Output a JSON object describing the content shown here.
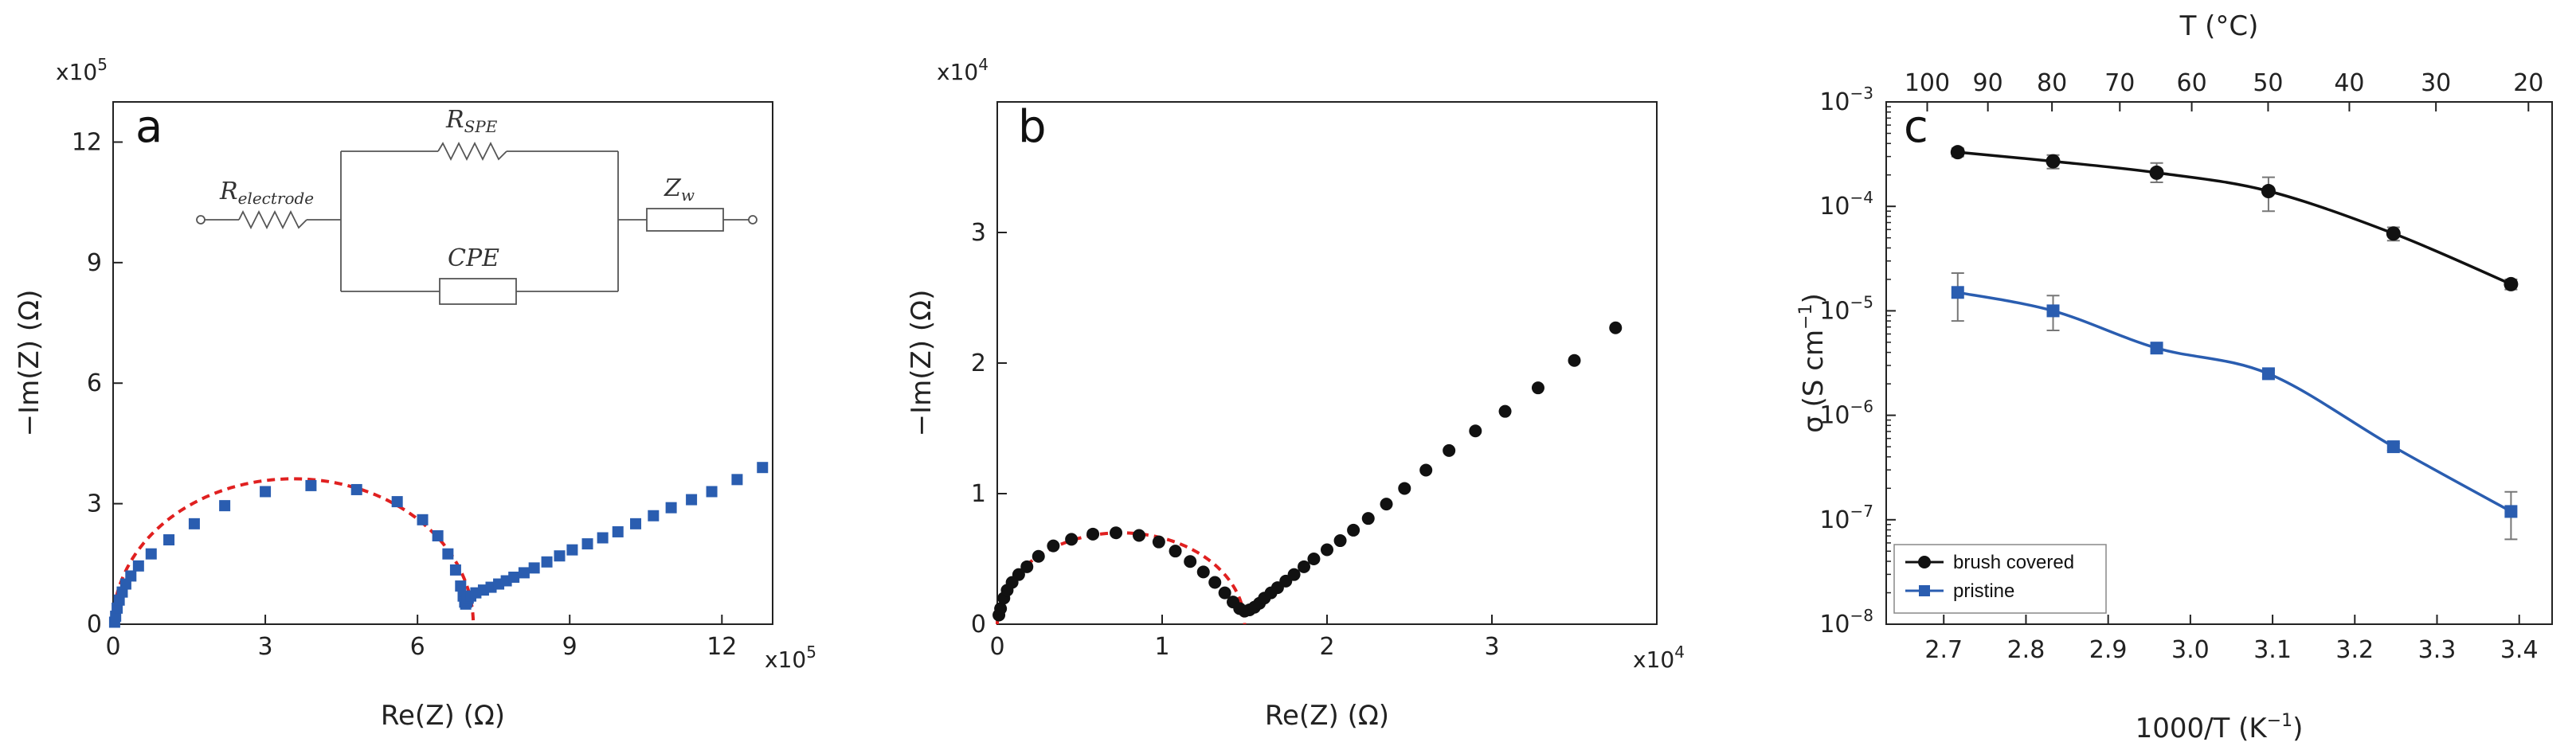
{
  "colors": {
    "blue": "#2a5db0",
    "black": "#111111",
    "fit": "#e02020",
    "axis": "#222222"
  },
  "chart_data": [
    {
      "panel": "a",
      "type": "scatter",
      "xlabel": "Re(Z) (Ω)",
      "ylabel": "−Im(Z) (Ω)",
      "x_multiplier": "x10",
      "x_multiplier_exp": "5",
      "y_multiplier": "x10",
      "y_multiplier_exp": "5",
      "xlim": [
        0,
        13
      ],
      "ylim": [
        0,
        13
      ],
      "xticks": [
        0,
        3,
        6,
        9,
        12
      ],
      "yticks": [
        0,
        3,
        6,
        9,
        12
      ],
      "circuit": {
        "r_electrode": "R",
        "r_electrode_sub": "electrode",
        "r_spe": "R",
        "r_spe_sub": "SPE",
        "cpe": "CPE",
        "zw": "Z",
        "zw_sub": "w"
      },
      "series": [
        {
          "name": "data",
          "marker": "square",
          "color": "#2a5db0",
          "x": [
            0.03,
            0.05,
            0.08,
            0.12,
            0.18,
            0.25,
            0.35,
            0.5,
            0.75,
            1.1,
            1.6,
            2.2,
            3.0,
            3.9,
            4.8,
            5.6,
            6.1,
            6.4,
            6.6,
            6.75,
            6.85,
            6.9,
            6.93,
            6.95,
            6.97,
            6.98,
            7.0,
            7.05,
            7.15,
            7.3,
            7.45,
            7.6,
            7.75,
            7.9,
            8.1,
            8.3,
            8.55,
            8.8,
            9.05,
            9.35,
            9.65,
            9.95,
            10.3,
            10.65,
            11.0,
            11.4,
            11.8,
            12.3,
            12.8
          ],
          "y": [
            0.05,
            0.2,
            0.4,
            0.6,
            0.8,
            1.0,
            1.2,
            1.45,
            1.75,
            2.1,
            2.5,
            2.95,
            3.3,
            3.45,
            3.35,
            3.05,
            2.6,
            2.2,
            1.75,
            1.35,
            0.95,
            0.7,
            0.55,
            0.5,
            0.55,
            0.6,
            0.65,
            0.7,
            0.78,
            0.85,
            0.92,
            1.0,
            1.08,
            1.17,
            1.28,
            1.4,
            1.55,
            1.7,
            1.85,
            2.0,
            2.15,
            2.3,
            2.5,
            2.7,
            2.9,
            3.1,
            3.3,
            3.6,
            3.9
          ]
        }
      ],
      "fit": {
        "type": "semicircle",
        "x_start": 0.0,
        "x_end": 7.1,
        "center": 3.55,
        "radius": 3.55,
        "peak": 3.62
      }
    },
    {
      "panel": "b",
      "type": "scatter",
      "xlabel": "Re(Z) (Ω)",
      "ylabel": "−Im(Z) (Ω)",
      "x_multiplier": "x10",
      "x_multiplier_exp": "4",
      "y_multiplier": "x10",
      "y_multiplier_exp": "4",
      "xlim": [
        0,
        4
      ],
      "ylim": [
        0,
        4
      ],
      "xticks": [
        0,
        1,
        2,
        3
      ],
      "yticks": [
        0,
        1,
        2,
        3
      ],
      "series": [
        {
          "name": "data",
          "marker": "circle",
          "color": "#111111",
          "x": [
            0.01,
            0.02,
            0.04,
            0.06,
            0.09,
            0.13,
            0.18,
            0.25,
            0.34,
            0.45,
            0.58,
            0.72,
            0.86,
            0.98,
            1.08,
            1.17,
            1.25,
            1.32,
            1.38,
            1.43,
            1.47,
            1.5,
            1.53,
            1.56,
            1.59,
            1.62,
            1.66,
            1.7,
            1.75,
            1.8,
            1.86,
            1.92,
            2.0,
            2.08,
            2.16,
            2.25,
            2.36,
            2.47,
            2.6,
            2.74,
            2.9,
            3.08,
            3.28,
            3.5,
            3.75
          ],
          "y": [
            0.07,
            0.12,
            0.2,
            0.26,
            0.32,
            0.38,
            0.44,
            0.52,
            0.6,
            0.65,
            0.69,
            0.7,
            0.68,
            0.63,
            0.56,
            0.48,
            0.4,
            0.32,
            0.24,
            0.17,
            0.12,
            0.1,
            0.11,
            0.13,
            0.16,
            0.2,
            0.24,
            0.28,
            0.33,
            0.38,
            0.44,
            0.5,
            0.57,
            0.64,
            0.72,
            0.81,
            0.92,
            1.04,
            1.18,
            1.33,
            1.48,
            1.63,
            1.81,
            2.02,
            2.27
          ]
        }
      ],
      "fit": {
        "type": "semicircle",
        "x_start": 0.0,
        "x_end": 1.5,
        "center": 0.75,
        "radius": 0.75,
        "peak": 0.7
      }
    },
    {
      "panel": "c",
      "type": "line",
      "xlabel": "1000/T (K",
      "xlabel_sup": "−1",
      "xlabel_end": ")",
      "ylabel": "σ (S cm",
      "ylabel_sup": "−1",
      "ylabel_end": ")",
      "top_xlabel": "T (°C)",
      "yscale": "log",
      "xlim": [
        2.63,
        3.44
      ],
      "ylim_exp": [
        -8,
        -3
      ],
      "xticks": [
        "2.7",
        "2.8",
        "2.9",
        "3.0",
        "3.1",
        "3.2",
        "3.3",
        "3.4"
      ],
      "top_ticks": [
        "100",
        "90",
        "80",
        "70",
        "60",
        "50",
        "40",
        "30",
        "20"
      ],
      "ytick_base": "10",
      "ytick_exps": [
        "−8",
        "−7",
        "−6",
        "−5",
        "−4",
        "−3"
      ],
      "legend": [
        "brush covered",
        "pristine"
      ],
      "series": [
        {
          "name": "brush covered",
          "marker": "circle",
          "color": "#111111",
          "x": [
            2.717,
            2.833,
            2.959,
            3.095,
            3.247,
            3.39
          ],
          "y": [
            0.00033,
            0.00027,
            0.00021,
            0.00014,
            5.5e-05,
            1.8e-05
          ],
          "err_low": [
            0.0003,
            0.00023,
            0.00017,
            9e-05,
            4.7e-05,
            1.6e-05
          ],
          "err_high": [
            0.00036,
            0.00031,
            0.00026,
            0.00019,
            6.3e-05,
            2e-05
          ]
        },
        {
          "name": "pristine",
          "marker": "square",
          "color": "#2a5db0",
          "x": [
            2.717,
            2.833,
            2.959,
            3.095,
            3.247,
            3.39
          ],
          "y": [
            1.5e-05,
            1e-05,
            4.4e-06,
            2.5e-06,
            5e-07,
            1.2e-07
          ],
          "err_low": [
            8e-06,
            6.5e-06,
            4.1e-06,
            2.3e-06,
            4.6e-07,
            6.5e-08
          ],
          "err_high": [
            2.3e-05,
            1.4e-05,
            4.7e-06,
            2.7e-06,
            5.4e-07,
            1.85e-07
          ]
        }
      ]
    }
  ]
}
